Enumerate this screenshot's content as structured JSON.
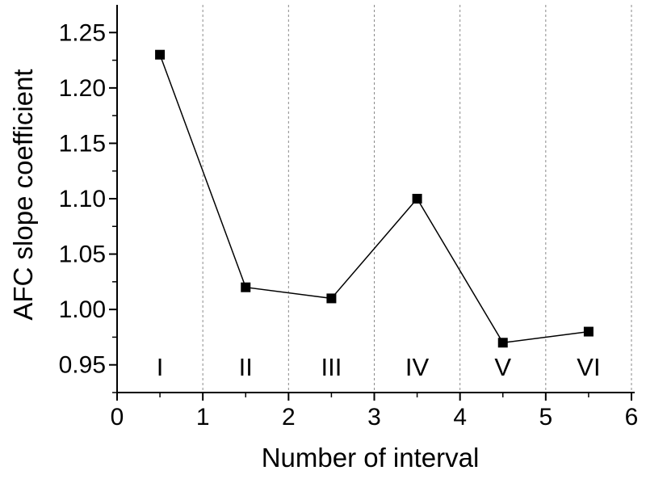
{
  "chart_data": {
    "type": "line",
    "title": "",
    "xlabel": "Number of interval",
    "ylabel": "AFC slope coefficient",
    "xlim": [
      0,
      6
    ],
    "ylim": [
      0.925,
      1.275
    ],
    "x_ticks": [
      0,
      1,
      2,
      3,
      4,
      5,
      6
    ],
    "y_ticks": [
      0.95,
      1.0,
      1.05,
      1.1,
      1.15,
      1.2,
      1.25
    ],
    "y_tick_labels": [
      "0.95",
      "1.00",
      "1.05",
      "1.10",
      "1.15",
      "1.20",
      "1.25"
    ],
    "interval_dividers": [
      1,
      2,
      3,
      4,
      5,
      6
    ],
    "interval_labels": [
      {
        "x": 0.5,
        "text": "I"
      },
      {
        "x": 1.5,
        "text": "II"
      },
      {
        "x": 2.5,
        "text": "III"
      },
      {
        "x": 3.5,
        "text": "IV"
      },
      {
        "x": 4.5,
        "text": "V"
      },
      {
        "x": 5.5,
        "text": "VI"
      }
    ],
    "series": [
      {
        "marker": "square",
        "color": "#000000",
        "x": [
          0.5,
          1.5,
          2.5,
          3.5,
          4.5,
          5.5
        ],
        "y": [
          1.23,
          1.02,
          1.01,
          1.1,
          0.97,
          0.98
        ]
      }
    ],
    "grid": "vertical dashed at interval boundaries",
    "legend": "none"
  }
}
